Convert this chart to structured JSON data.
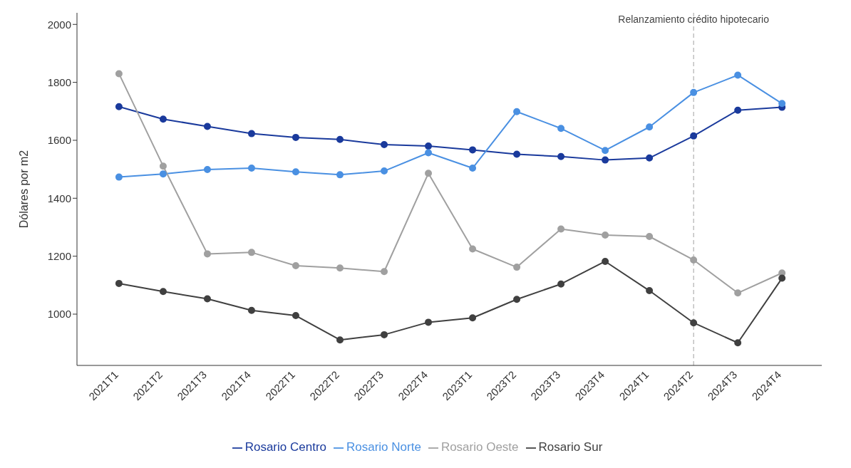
{
  "chart_data": {
    "type": "line",
    "ylabel": "Dólares por m2",
    "categories": [
      "2021T1",
      "2021T2",
      "2021T3",
      "2021T4",
      "2022T1",
      "2022T2",
      "2022T3",
      "2022T4",
      "2023T1",
      "2023T2",
      "2023T3",
      "2023T4",
      "2024T1",
      "2024T2",
      "2024T3",
      "2024T4"
    ],
    "series": [
      {
        "name": "Rosario Centro",
        "color": "#1a3a9c",
        "values": [
          1716,
          1673,
          1648,
          1623,
          1610,
          1603,
          1585,
          1580,
          1567,
          1552,
          1544,
          1532,
          1539,
          1615,
          1704,
          1714
        ]
      },
      {
        "name": "Rosario Norte",
        "color": "#4a90e2",
        "values": [
          1473,
          1484,
          1499,
          1504,
          1491,
          1481,
          1494,
          1557,
          1504,
          1699,
          1641,
          1565,
          1646,
          1765,
          1825,
          1727
        ]
      },
      {
        "name": "Rosario Oeste",
        "color": "#a0a0a0",
        "values": [
          1830,
          1511,
          1208,
          1213,
          1167,
          1159,
          1147,
          1486,
          1225,
          1162,
          1294,
          1273,
          1268,
          1187,
          1073,
          1142
        ]
      },
      {
        "name": "Rosario Sur",
        "color": "#404040",
        "values": [
          1106,
          1078,
          1053,
          1013,
          995,
          911,
          929,
          972,
          987,
          1051,
          1104,
          1182,
          1081,
          970,
          901,
          1124
        ]
      }
    ],
    "ylim": [
      823,
      2040
    ],
    "yticks": [
      1000,
      1200,
      1400,
      1600,
      1800,
      2000
    ],
    "ref_lines": [
      {
        "axis": "x",
        "value": "2024T2",
        "label": "Relanzamiento crédito hipotecario",
        "color": "#a0a0a0",
        "line_style": "dashed"
      }
    ],
    "legend": "bottom",
    "marker": "circle",
    "line_style": "solid",
    "grid": false
  }
}
